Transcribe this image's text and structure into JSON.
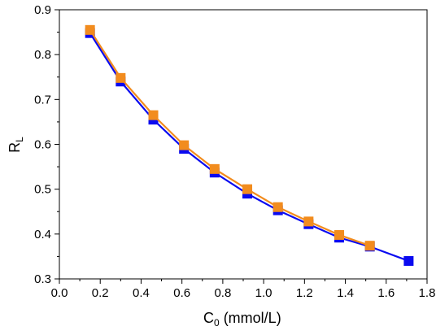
{
  "chart_data": {
    "type": "line",
    "title": "",
    "xlabel": {
      "main": "C",
      "subscript": "0",
      "suffix": " (mmol/L)"
    },
    "ylabel": {
      "main": "R",
      "subscript": "L"
    },
    "xlim": [
      0.0,
      1.8
    ],
    "ylim": [
      0.3,
      0.9
    ],
    "xticks": [
      "0.0",
      "0.2",
      "0.4",
      "0.6",
      "0.8",
      "1.0",
      "1.2",
      "1.4",
      "1.6",
      "1.8"
    ],
    "yticks": [
      "0.3",
      "0.4",
      "0.5",
      "0.6",
      "0.7",
      "0.8",
      "0.9"
    ],
    "grid": false,
    "legend": "none",
    "series": [
      {
        "color": "#0a0af0",
        "marker": "square",
        "x": [
          0.15,
          0.3,
          0.46,
          0.61,
          0.76,
          0.92,
          1.07,
          1.22,
          1.37,
          1.52,
          1.71
        ],
        "y": [
          0.848,
          0.74,
          0.655,
          0.59,
          0.537,
          0.49,
          0.453,
          0.422,
          0.392,
          0.372,
          0.34
        ]
      },
      {
        "color": "#f28c1e",
        "marker": "square",
        "x": [
          0.15,
          0.3,
          0.46,
          0.61,
          0.76,
          0.92,
          1.07,
          1.22,
          1.37,
          1.52
        ],
        "y": [
          0.855,
          0.748,
          0.665,
          0.598,
          0.545,
          0.5,
          0.46,
          0.428,
          0.398,
          0.374
        ]
      }
    ]
  }
}
